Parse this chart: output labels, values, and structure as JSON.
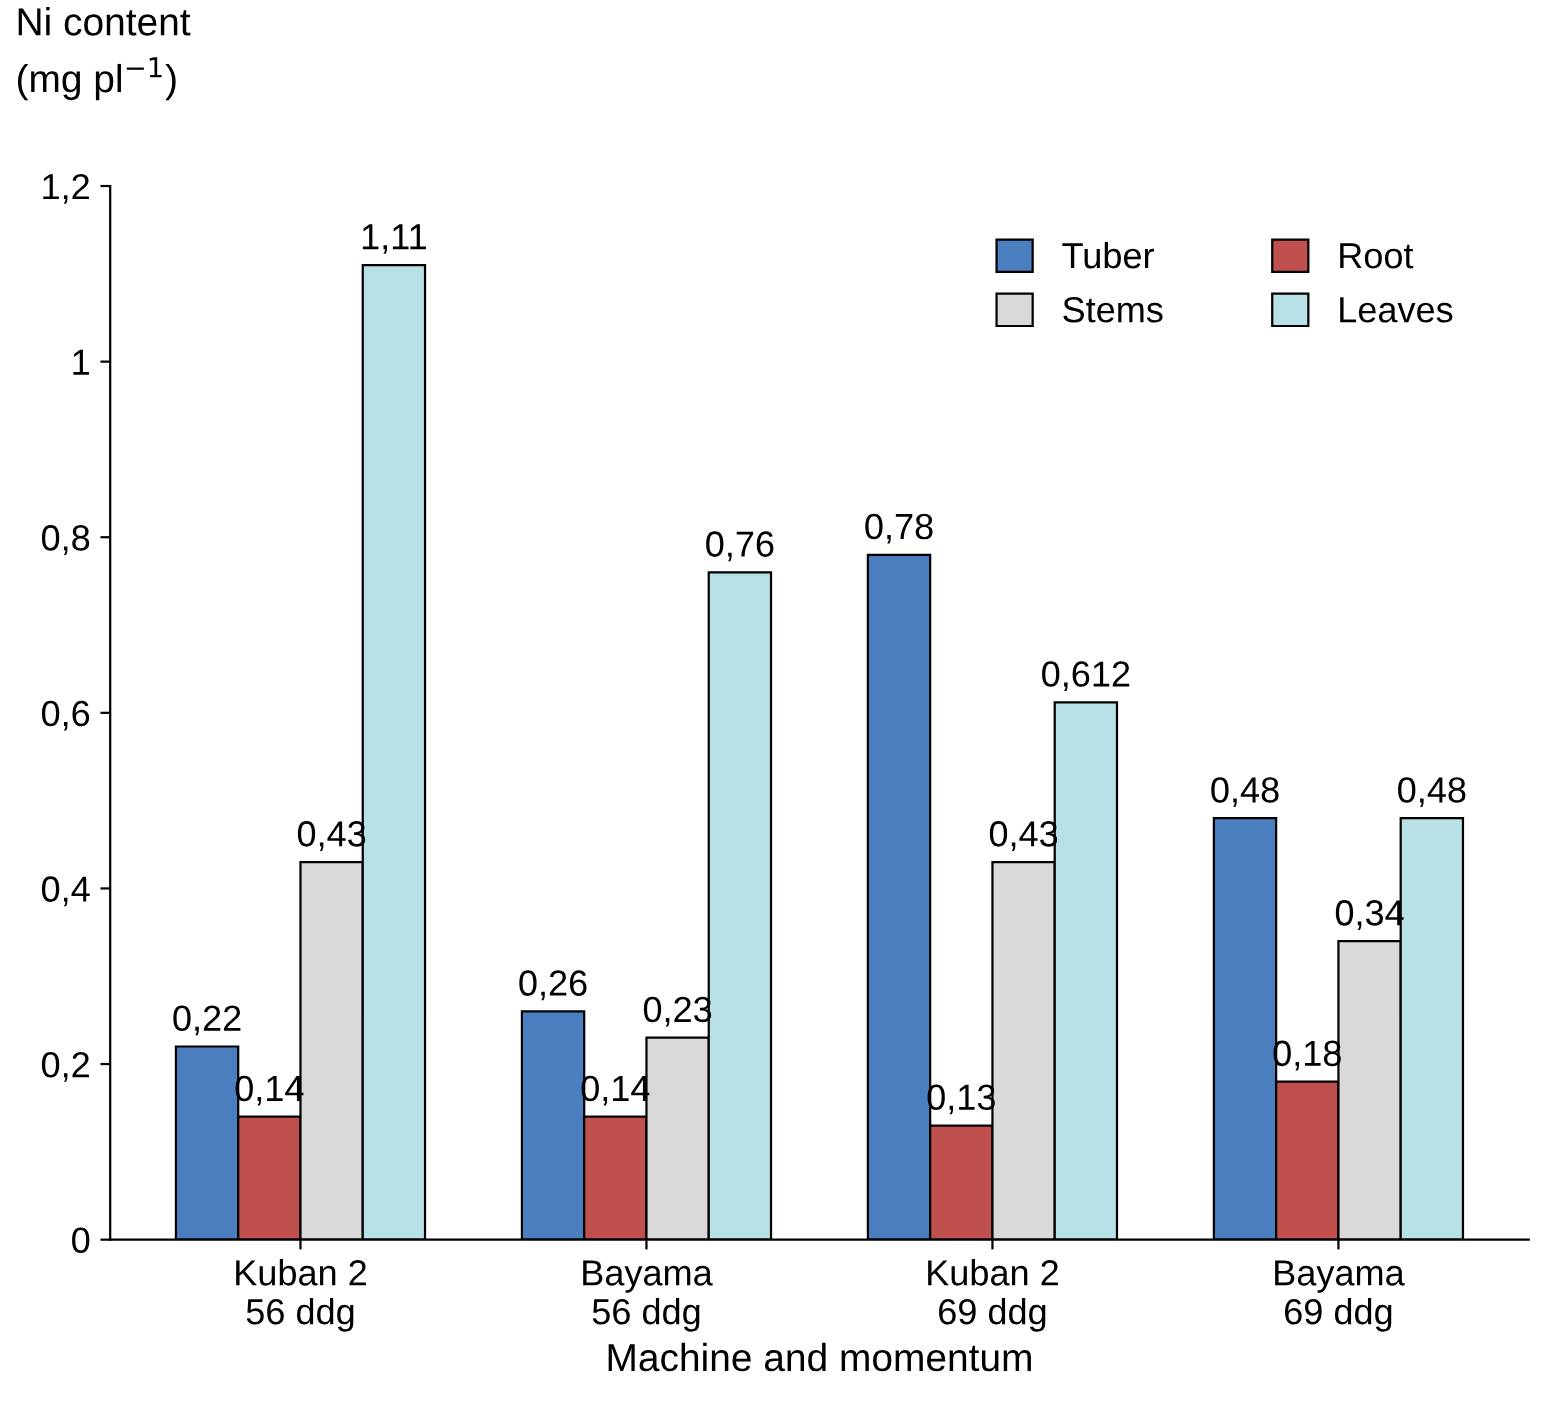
{
  "chart_data": {
    "type": "bar",
    "xlabel": "Machine and momentum",
    "ylabel": "Ni content\n(mg pl$^{−1}$)",
    "categories": [
      "Kuban 2\n56 ddg",
      "Bayama\n56 ddg",
      "Kuban 2\n69 ddg",
      "Bayama\n69 ddg"
    ],
    "series": [
      {
        "name": "Tuber",
        "color": "#4a7ebf",
        "values": [
          0.22,
          0.26,
          0.78,
          0.48
        ],
        "value_labels": [
          "0,22",
          "0,26",
          "0,78",
          "0,48"
        ]
      },
      {
        "name": "Root",
        "color": "#c0504d",
        "values": [
          0.14,
          0.14,
          0.13,
          0.18
        ],
        "value_labels": [
          "0,14",
          "0,14",
          "0,13",
          "0,18"
        ]
      },
      {
        "name": "Stems",
        "color": "#d9d9d9",
        "values": [
          0.43,
          0.23,
          0.43,
          0.34
        ],
        "value_labels": [
          "0,43",
          "0,23",
          "0,43",
          "0,34"
        ]
      },
      {
        "name": "Leaves",
        "color": "#b7e1e6",
        "values": [
          1.11,
          0.76,
          0.612,
          0.48
        ],
        "value_labels": [
          "1,11",
          "0,76",
          "0,612",
          "0,48"
        ]
      }
    ],
    "ylim": [
      0,
      1.2
    ],
    "yticks": [
      0,
      {
        "value": 0.2,
        "label": "0,2"
      },
      {
        "value": 0.4,
        "label": "0,4"
      },
      {
        "value": 0.6,
        "label": "0,6"
      },
      {
        "value": 0.8,
        "label": "0,8"
      },
      1,
      {
        "value": 1.2,
        "label": "1,2"
      }
    ],
    "grid": false,
    "legend": "top right"
  }
}
